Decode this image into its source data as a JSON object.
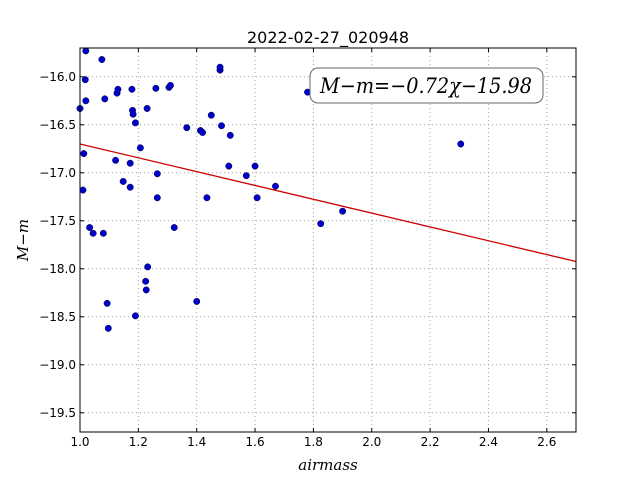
{
  "chart_data": {
    "type": "scatter",
    "title": "2022-02-27_020948",
    "xlabel": "airmass",
    "ylabel": "M−m",
    "xlim": [
      1.0,
      2.7
    ],
    "ylim": [
      -19.7,
      -15.7
    ],
    "y_inverted": true,
    "xticks": [
      1.0,
      1.2,
      1.4,
      1.6,
      1.8,
      2.0,
      2.2,
      2.4,
      2.6
    ],
    "xtick_labels": [
      "1.0",
      "1.2",
      "1.4",
      "1.6",
      "1.8",
      "2.0",
      "2.2",
      "2.4",
      "2.6"
    ],
    "yticks": [
      -16.0,
      -16.5,
      -17.0,
      -17.5,
      -18.0,
      -18.5,
      -19.0,
      -19.5
    ],
    "ytick_labels": [
      "−16.0",
      "−16.5",
      "−17.0",
      "−17.5",
      "−18.0",
      "−18.5",
      "−19.0",
      "−19.5"
    ],
    "grid": true,
    "points": [
      {
        "x": 1.0,
        "y": -16.33
      },
      {
        "x": 1.01,
        "y": -17.18
      },
      {
        "x": 1.013,
        "y": -16.8
      },
      {
        "x": 1.018,
        "y": -16.03
      },
      {
        "x": 1.02,
        "y": -15.73
      },
      {
        "x": 1.02,
        "y": -16.25
      },
      {
        "x": 1.033,
        "y": -17.57
      },
      {
        "x": 1.045,
        "y": -17.63
      },
      {
        "x": 1.075,
        "y": -15.82
      },
      {
        "x": 1.08,
        "y": -17.63
      },
      {
        "x": 1.085,
        "y": -16.23
      },
      {
        "x": 1.093,
        "y": -18.36
      },
      {
        "x": 1.097,
        "y": -18.62
      },
      {
        "x": 1.122,
        "y": -16.87
      },
      {
        "x": 1.127,
        "y": -16.17
      },
      {
        "x": 1.13,
        "y": -16.13
      },
      {
        "x": 1.148,
        "y": -17.09
      },
      {
        "x": 1.172,
        "y": -17.15
      },
      {
        "x": 1.172,
        "y": -16.9
      },
      {
        "x": 1.178,
        "y": -16.13
      },
      {
        "x": 1.18,
        "y": -16.35
      },
      {
        "x": 1.182,
        "y": -16.39
      },
      {
        "x": 1.19,
        "y": -16.48
      },
      {
        "x": 1.19,
        "y": -18.49
      },
      {
        "x": 1.207,
        "y": -16.74
      },
      {
        "x": 1.225,
        "y": -18.13
      },
      {
        "x": 1.227,
        "y": -18.22
      },
      {
        "x": 1.23,
        "y": -16.33
      },
      {
        "x": 1.232,
        "y": -17.98
      },
      {
        "x": 1.26,
        "y": -16.12
      },
      {
        "x": 1.265,
        "y": -17.01
      },
      {
        "x": 1.265,
        "y": -17.26
      },
      {
        "x": 1.305,
        "y": -16.11
      },
      {
        "x": 1.31,
        "y": -16.09
      },
      {
        "x": 1.323,
        "y": -17.57
      },
      {
        "x": 1.366,
        "y": -16.53
      },
      {
        "x": 1.4,
        "y": -18.34
      },
      {
        "x": 1.413,
        "y": -16.56
      },
      {
        "x": 1.42,
        "y": -16.58
      },
      {
        "x": 1.435,
        "y": -17.26
      },
      {
        "x": 1.45,
        "y": -16.4
      },
      {
        "x": 1.48,
        "y": -15.93
      },
      {
        "x": 1.48,
        "y": -15.9
      },
      {
        "x": 1.485,
        "y": -16.51
      },
      {
        "x": 1.51,
        "y": -16.93
      },
      {
        "x": 1.515,
        "y": -16.61
      },
      {
        "x": 1.57,
        "y": -17.03
      },
      {
        "x": 1.6,
        "y": -16.93
      },
      {
        "x": 1.607,
        "y": -17.26
      },
      {
        "x": 1.67,
        "y": -17.14
      },
      {
        "x": 1.78,
        "y": -16.16
      },
      {
        "x": 1.825,
        "y": -17.53
      },
      {
        "x": 1.9,
        "y": -17.4
      },
      {
        "x": 2.305,
        "y": -16.7
      }
    ],
    "fit_line": {
      "slope": -0.72,
      "intercept": -15.98
    },
    "annotation": "M−m=−0.72χ−15.98",
    "colors": {
      "points": "#0000cc",
      "fit_line": "#cc0000",
      "grid": "#a0a0a0",
      "axes": "#000000"
    }
  }
}
